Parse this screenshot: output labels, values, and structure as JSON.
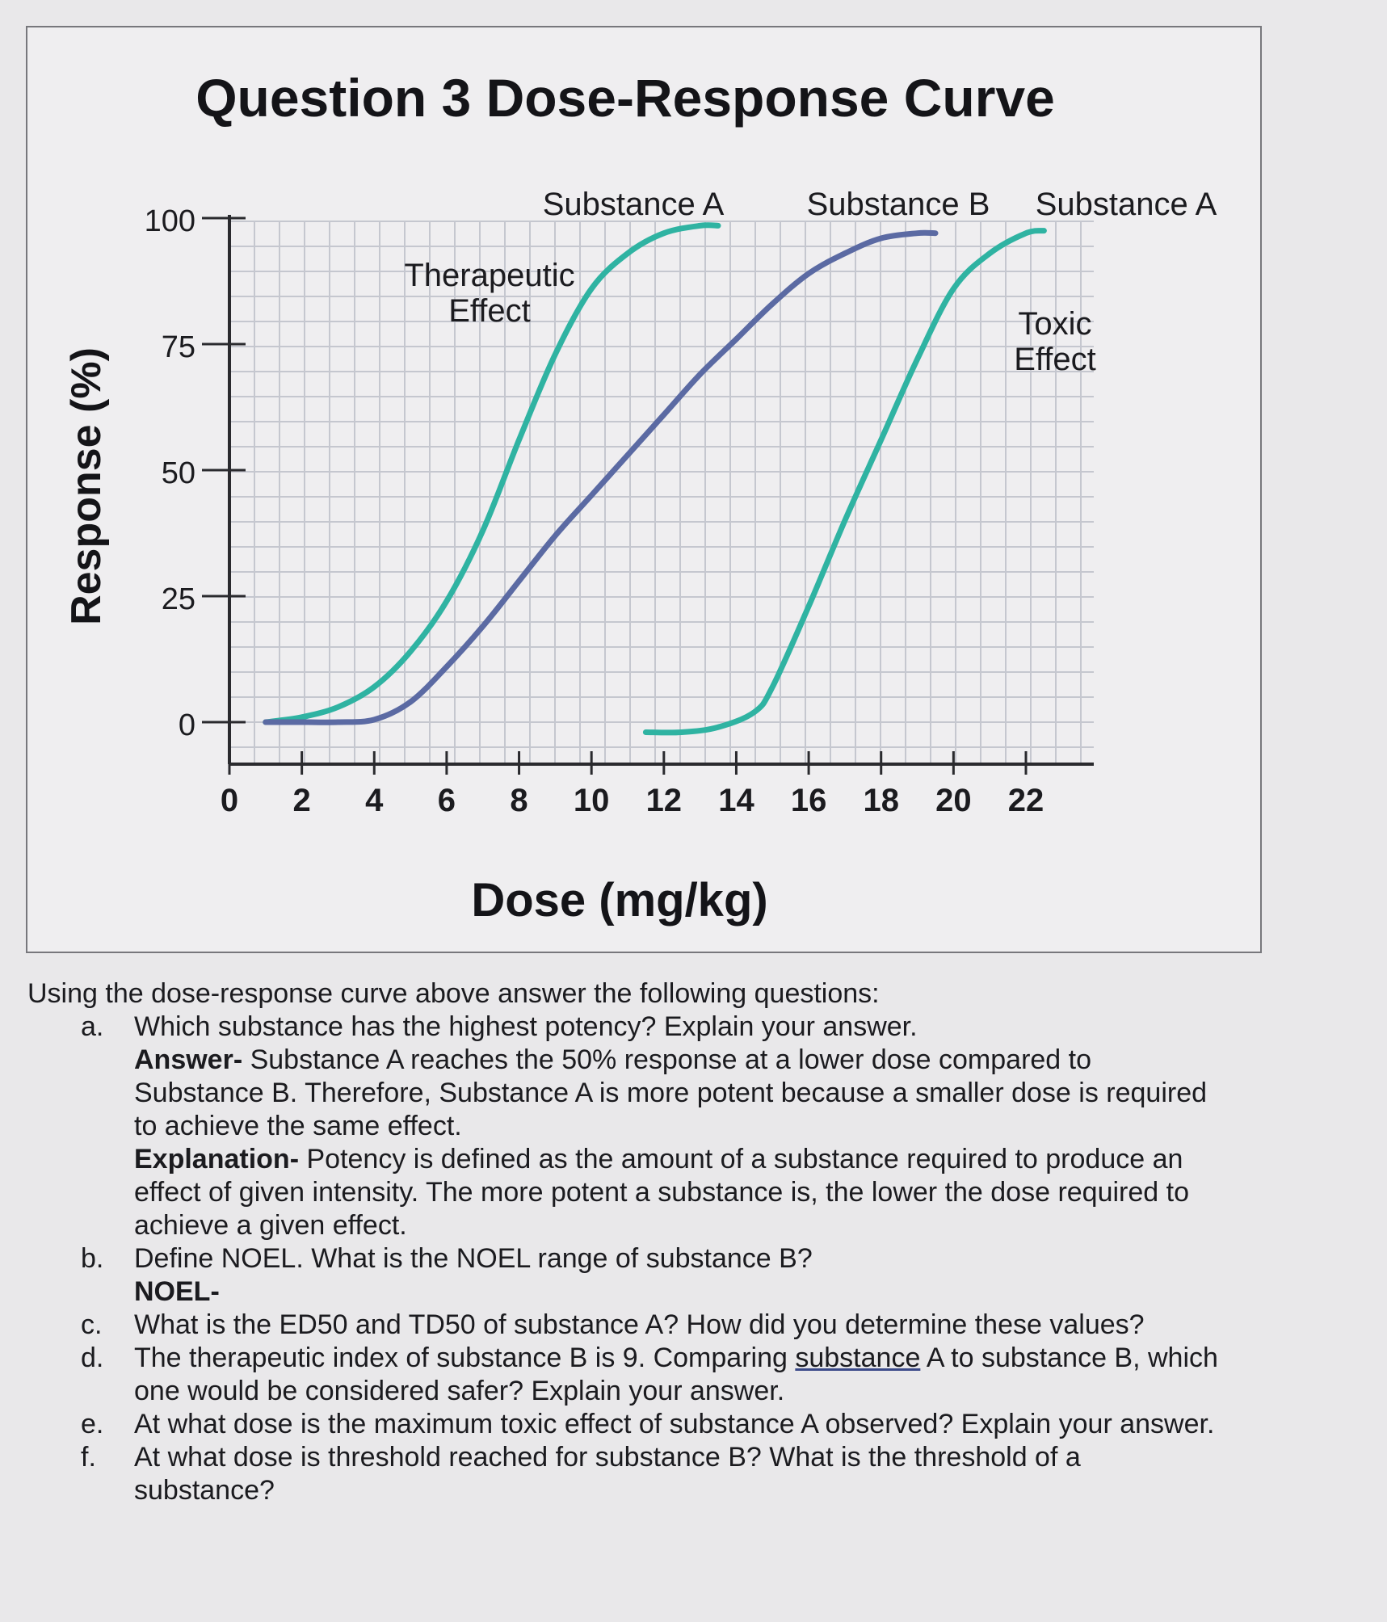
{
  "chart_data": {
    "type": "line",
    "title": "Question 3 Dose-Response Curve",
    "xlabel": "Dose (mg/kg)",
    "ylabel": "Response (%)",
    "xlim": [
      0,
      24
    ],
    "ylim": [
      -6,
      102
    ],
    "xticks": [
      "0",
      "2",
      "4",
      "6",
      "8",
      "10",
      "12",
      "14",
      "16",
      "18",
      "20",
      "22"
    ],
    "yticks": [
      "0",
      "25",
      "50",
      "75",
      "100"
    ],
    "grid": true,
    "annotations": [
      {
        "text_lines": [
          "Therapeutic",
          "Effect"
        ],
        "near": "Substance A therapeutic curve"
      },
      {
        "text_lines": [
          "Toxic",
          "Effect"
        ],
        "near": "Substance A toxic curve"
      }
    ],
    "colors": {
      "substance_a": "#2fb3a2",
      "substance_b": "#5b6aa3",
      "axis": "#2a2a2e",
      "grid": "#c5c7cf"
    },
    "series": [
      {
        "name": "Substance A",
        "effect": "Therapeutic",
        "x": [
          1,
          2,
          3,
          4,
          5,
          6,
          7,
          8,
          9,
          10,
          11,
          12,
          13,
          13.5
        ],
        "y": [
          0,
          1,
          3,
          7,
          14,
          24,
          38,
          56,
          73,
          86,
          93,
          97,
          98.5,
          98.5
        ]
      },
      {
        "name": "Substance B",
        "effect": "",
        "x": [
          1,
          2,
          3,
          4,
          5,
          6,
          7,
          8,
          9,
          10,
          11,
          12,
          13,
          14,
          15,
          16,
          17,
          18,
          19,
          19.5
        ],
        "y": [
          0,
          0,
          0,
          0.5,
          4,
          11,
          19,
          28,
          37,
          45,
          53,
          61,
          69,
          76,
          83,
          89,
          93,
          96,
          97,
          97
        ]
      },
      {
        "name": "Substance A",
        "effect": "Toxic",
        "x": [
          11.5,
          12.5,
          13.5,
          14.5,
          15,
          16,
          17,
          18,
          19,
          20,
          21,
          22,
          22.5
        ],
        "y": [
          -2,
          -2,
          -1,
          2,
          7,
          23,
          40,
          56,
          72,
          86,
          93,
          97,
          97.5
        ]
      }
    ]
  },
  "questions": {
    "intro": "Using the dose-response curve above answer the following questions:",
    "items": [
      {
        "marker": "a.",
        "lines": [
          {
            "bold": "",
            "text": "Which substance has the highest potency? Explain your answer."
          },
          {
            "bold": "Answer-",
            "text": " Substance A reaches the 50% response at a lower dose compared to"
          },
          {
            "bold": "",
            "text": "Substance B. Therefore, Substance A is more potent because a smaller dose is required"
          },
          {
            "bold": "",
            "text": "to achieve the same effect."
          },
          {
            "bold": "Explanation-",
            "text": " Potency is defined as the amount of a substance required to produce an"
          },
          {
            "bold": "",
            "text": "effect of given intensity. The more potent a substance is, the lower the dose required to"
          },
          {
            "bold": "",
            "text": "achieve a given effect."
          }
        ]
      },
      {
        "marker": "b.",
        "lines": [
          {
            "bold": "",
            "text": "Define NOEL. What is the NOEL range of substance B?"
          },
          {
            "bold": "NOEL-",
            "text": ""
          }
        ]
      },
      {
        "marker": "c.",
        "lines": [
          {
            "bold": "",
            "text": "What is the ED50 and TD50 of substance A? How did you determine these values?"
          }
        ]
      },
      {
        "marker": "d.",
        "lines": [
          {
            "bold": "",
            "text": "The therapeutic index of substance B is 9. Comparing",
            "underline": "substance",
            "after": " A to substance B, which"
          },
          {
            "bold": "",
            "text": "one would be considered safer? Explain your answer."
          }
        ]
      },
      {
        "marker": "e.",
        "lines": [
          {
            "bold": "",
            "text": "At what dose is the maximum toxic effect of substance A observed? Explain your answer."
          }
        ]
      },
      {
        "marker": "f.",
        "lines": [
          {
            "bold": "",
            "text": "At what dose is threshold reached for substance B? What is the threshold of a"
          },
          {
            "bold": "",
            "text": "substance?"
          }
        ]
      }
    ]
  }
}
